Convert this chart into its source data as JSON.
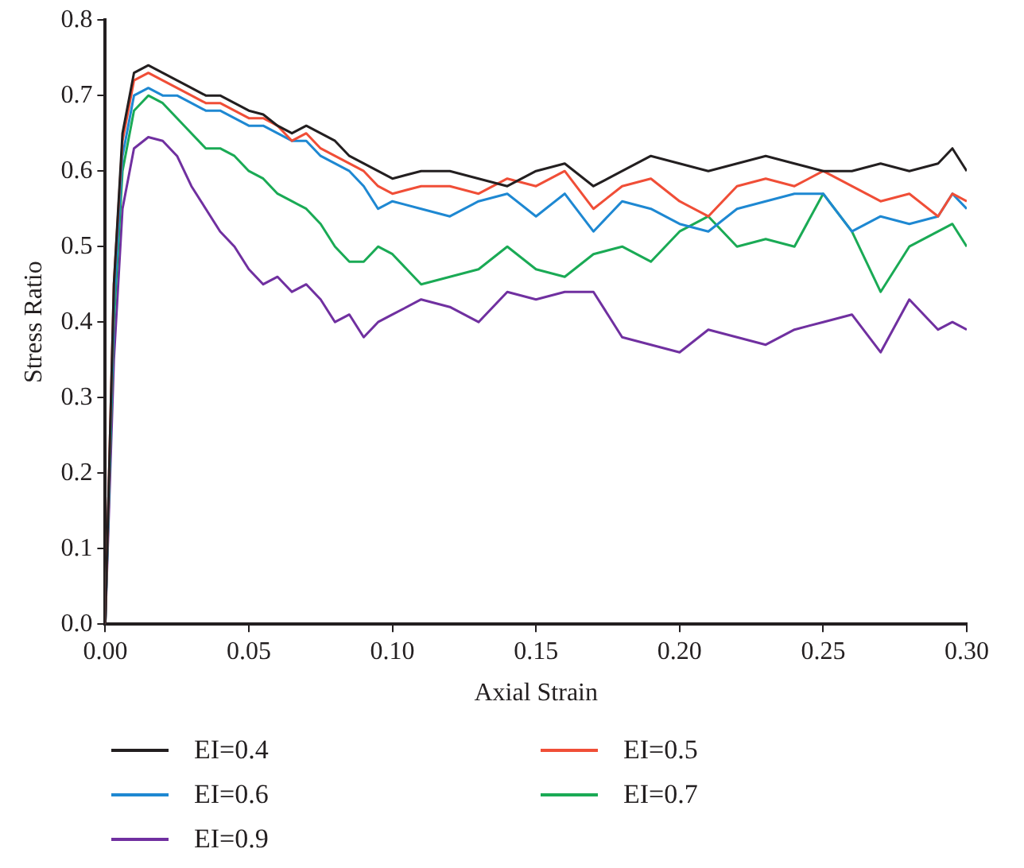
{
  "chart_data": {
    "type": "line",
    "xlabel": "Axial Strain",
    "ylabel": "Stress Ratio",
    "x": [
      0,
      0.003,
      0.006,
      0.01,
      0.015,
      0.02,
      0.025,
      0.03,
      0.035,
      0.04,
      0.045,
      0.05,
      0.055,
      0.06,
      0.065,
      0.07,
      0.075,
      0.08,
      0.085,
      0.09,
      0.095,
      0.1,
      0.11,
      0.12,
      0.13,
      0.14,
      0.15,
      0.16,
      0.17,
      0.18,
      0.19,
      0.2,
      0.21,
      0.22,
      0.23,
      0.24,
      0.25,
      0.26,
      0.27,
      0.28,
      0.29,
      0.295,
      0.3
    ],
    "series": [
      {
        "name": "EI=0.4",
        "color": "#231f20",
        "values": [
          0,
          0.45,
          0.65,
          0.73,
          0.74,
          0.73,
          0.72,
          0.71,
          0.7,
          0.7,
          0.69,
          0.68,
          0.675,
          0.66,
          0.65,
          0.66,
          0.65,
          0.64,
          0.62,
          0.61,
          0.6,
          0.59,
          0.6,
          0.6,
          0.59,
          0.58,
          0.6,
          0.61,
          0.58,
          0.6,
          0.62,
          0.61,
          0.6,
          0.61,
          0.62,
          0.61,
          0.6,
          0.6,
          0.61,
          0.6,
          0.61,
          0.63,
          0.6
        ]
      },
      {
        "name": "EI=0.5",
        "color": "#f04e37",
        "values": [
          0,
          0.45,
          0.64,
          0.72,
          0.73,
          0.72,
          0.71,
          0.7,
          0.69,
          0.69,
          0.68,
          0.67,
          0.67,
          0.66,
          0.64,
          0.65,
          0.63,
          0.62,
          0.61,
          0.6,
          0.58,
          0.57,
          0.58,
          0.58,
          0.57,
          0.59,
          0.58,
          0.6,
          0.55,
          0.58,
          0.59,
          0.56,
          0.54,
          0.58,
          0.59,
          0.58,
          0.6,
          0.58,
          0.56,
          0.57,
          0.54,
          0.57,
          0.56
        ]
      },
      {
        "name": "EI=0.6",
        "color": "#1e88d2",
        "values": [
          0,
          0.42,
          0.62,
          0.7,
          0.71,
          0.7,
          0.7,
          0.69,
          0.68,
          0.68,
          0.67,
          0.66,
          0.66,
          0.65,
          0.64,
          0.64,
          0.62,
          0.61,
          0.6,
          0.58,
          0.55,
          0.56,
          0.55,
          0.54,
          0.56,
          0.57,
          0.54,
          0.57,
          0.52,
          0.56,
          0.55,
          0.53,
          0.52,
          0.55,
          0.56,
          0.57,
          0.57,
          0.52,
          0.54,
          0.53,
          0.54,
          0.57,
          0.55
        ]
      },
      {
        "name": "EI=0.7",
        "color": "#1aaa55",
        "values": [
          0,
          0.4,
          0.6,
          0.68,
          0.7,
          0.69,
          0.67,
          0.65,
          0.63,
          0.63,
          0.62,
          0.6,
          0.59,
          0.57,
          0.56,
          0.55,
          0.53,
          0.5,
          0.48,
          0.48,
          0.5,
          0.49,
          0.45,
          0.46,
          0.47,
          0.5,
          0.47,
          0.46,
          0.49,
          0.5,
          0.48,
          0.52,
          0.54,
          0.5,
          0.51,
          0.5,
          0.57,
          0.52,
          0.44,
          0.5,
          0.52,
          0.53,
          0.5
        ]
      },
      {
        "name": "EI=0.9",
        "color": "#7030a0",
        "values": [
          0,
          0.35,
          0.55,
          0.63,
          0.645,
          0.64,
          0.62,
          0.58,
          0.55,
          0.52,
          0.5,
          0.47,
          0.45,
          0.46,
          0.44,
          0.45,
          0.43,
          0.4,
          0.41,
          0.38,
          0.4,
          0.41,
          0.43,
          0.42,
          0.4,
          0.44,
          0.43,
          0.44,
          0.44,
          0.38,
          0.37,
          0.36,
          0.39,
          0.38,
          0.37,
          0.39,
          0.4,
          0.41,
          0.36,
          0.43,
          0.39,
          0.4,
          0.39
        ]
      }
    ],
    "xlim": [
      0,
      0.3
    ],
    "ylim": [
      0,
      0.8
    ],
    "xticks": [
      {
        "value": 0,
        "label": "0.00"
      },
      {
        "value": 0.05,
        "label": "0.05"
      },
      {
        "value": 0.1,
        "label": "0.10"
      },
      {
        "value": 0.15,
        "label": "0.15"
      },
      {
        "value": 0.2,
        "label": "0.20"
      },
      {
        "value": 0.25,
        "label": "0.25"
      },
      {
        "value": 0.3,
        "label": "0.30"
      }
    ],
    "yticks": [
      {
        "value": 0,
        "label": "0.0"
      },
      {
        "value": 0.1,
        "label": "0.1"
      },
      {
        "value": 0.2,
        "label": "0.2"
      },
      {
        "value": 0.3,
        "label": "0.3"
      },
      {
        "value": 0.4,
        "label": "0.4"
      },
      {
        "value": 0.5,
        "label": "0.5"
      },
      {
        "value": 0.6,
        "label": "0.6"
      },
      {
        "value": 0.7,
        "label": "0.7"
      },
      {
        "value": 0.8,
        "label": "0.8"
      }
    ],
    "grid": false,
    "legend": "bottom",
    "marker": "none",
    "line_style": "solid"
  }
}
